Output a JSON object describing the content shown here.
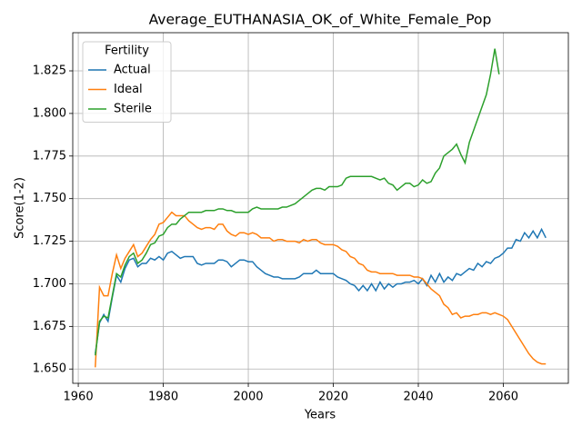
{
  "chart_data": {
    "type": "line",
    "title": "Average_EUTHANASIA_OK_of_White_Female_Pop",
    "x_label": "Years",
    "y_label": "Score(1-2)",
    "legend_title": "Fertility",
    "legend_position": "upper left",
    "grid": true,
    "x": [
      1964,
      1965,
      1966,
      1967,
      1968,
      1969,
      1970,
      1971,
      1972,
      1973,
      1974,
      1975,
      1976,
      1977,
      1978,
      1979,
      1980,
      1981,
      1982,
      1983,
      1984,
      1985,
      1986,
      1987,
      1988,
      1989,
      1990,
      1991,
      1992,
      1993,
      1994,
      1995,
      1996,
      1997,
      1998,
      1999,
      2000,
      2001,
      2002,
      2003,
      2004,
      2005,
      2006,
      2007,
      2008,
      2009,
      2010,
      2011,
      2012,
      2013,
      2014,
      2015,
      2016,
      2017,
      2018,
      2019,
      2020,
      2021,
      2022,
      2023,
      2024,
      2025,
      2026,
      2027,
      2028,
      2029,
      2030,
      2031,
      2032,
      2033,
      2034,
      2035,
      2036,
      2037,
      2038,
      2039,
      2040,
      2041,
      2042,
      2043,
      2044,
      2045,
      2046,
      2047,
      2048,
      2049,
      2050,
      2051,
      2052,
      2053,
      2054,
      2055,
      2056,
      2057,
      2058,
      2059,
      2060,
      2061,
      2062,
      2063,
      2064,
      2065,
      2066,
      2067,
      2068,
      2069,
      2070
    ],
    "series": [
      {
        "name": "Actual",
        "color": "#1f77b4",
        "values": [
          1.659,
          1.677,
          1.682,
          1.678,
          1.692,
          1.705,
          1.701,
          1.709,
          1.714,
          1.715,
          1.71,
          1.712,
          1.712,
          1.715,
          1.714,
          1.716,
          1.714,
          1.718,
          1.719,
          1.717,
          1.715,
          1.716,
          1.716,
          1.716,
          1.712,
          1.711,
          1.712,
          1.712,
          1.712,
          1.714,
          1.714,
          1.713,
          1.71,
          1.712,
          1.714,
          1.714,
          1.713,
          1.713,
          1.71,
          1.708,
          1.706,
          1.705,
          1.704,
          1.704,
          1.703,
          1.703,
          1.703,
          1.703,
          1.704,
          1.706,
          1.706,
          1.706,
          1.708,
          1.706,
          1.706,
          1.706,
          1.706,
          1.704,
          1.703,
          1.702,
          1.7,
          1.699,
          1.696,
          1.699,
          1.696,
          1.7,
          1.696,
          1.701,
          1.697,
          1.7,
          1.698,
          1.7,
          1.7,
          1.701,
          1.701,
          1.702,
          1.7,
          1.703,
          1.699,
          1.705,
          1.701,
          1.706,
          1.701,
          1.704,
          1.702,
          1.706,
          1.705,
          1.707,
          1.709,
          1.708,
          1.712,
          1.71,
          1.713,
          1.712,
          1.715,
          1.716,
          1.718,
          1.721,
          1.721,
          1.726,
          1.725,
          1.73,
          1.727,
          1.731,
          1.727,
          1.732,
          1.727
        ]
      },
      {
        "name": "Ideal",
        "color": "#ff7f0e",
        "values": [
          1.651,
          1.698,
          1.693,
          1.693,
          1.706,
          1.717,
          1.709,
          1.715,
          1.719,
          1.723,
          1.716,
          1.718,
          1.722,
          1.726,
          1.729,
          1.735,
          1.736,
          1.739,
          1.742,
          1.74,
          1.74,
          1.74,
          1.737,
          1.735,
          1.733,
          1.732,
          1.733,
          1.733,
          1.732,
          1.735,
          1.735,
          1.731,
          1.729,
          1.728,
          1.73,
          1.73,
          1.729,
          1.73,
          1.729,
          1.727,
          1.727,
          1.727,
          1.725,
          1.726,
          1.726,
          1.725,
          1.725,
          1.725,
          1.724,
          1.726,
          1.725,
          1.726,
          1.726,
          1.724,
          1.723,
          1.723,
          1.723,
          1.722,
          1.72,
          1.719,
          1.716,
          1.715,
          1.712,
          1.711,
          1.708,
          1.707,
          1.707,
          1.706,
          1.706,
          1.706,
          1.706,
          1.705,
          1.705,
          1.705,
          1.705,
          1.704,
          1.704,
          1.703,
          1.7,
          1.697,
          1.695,
          1.693,
          1.688,
          1.686,
          1.682,
          1.683,
          1.68,
          1.681,
          1.681,
          1.682,
          1.682,
          1.683,
          1.683,
          1.682,
          1.683,
          1.682,
          1.681,
          1.679,
          1.675,
          1.671,
          1.667,
          1.663,
          1.659,
          1.656,
          1.654,
          1.653,
          1.653
        ]
      },
      {
        "name": "Sterile",
        "color": "#2ca02c",
        "values": [
          1.658,
          1.678,
          1.681,
          1.68,
          1.693,
          1.706,
          1.704,
          1.711,
          1.716,
          1.718,
          1.712,
          1.714,
          1.718,
          1.723,
          1.724,
          1.728,
          1.729,
          1.733,
          1.735,
          1.735,
          1.738,
          1.74,
          1.742,
          1.742,
          1.742,
          1.742,
          1.743,
          1.743,
          1.743,
          1.744,
          1.744,
          1.743,
          1.743,
          1.742,
          1.742,
          1.742,
          1.742,
          1.744,
          1.745,
          1.744,
          1.744,
          1.744,
          1.744,
          1.744,
          1.745,
          1.745,
          1.746,
          1.747,
          1.749,
          1.751,
          1.753,
          1.755,
          1.756,
          1.756,
          1.755,
          1.757,
          1.757,
          1.757,
          1.758,
          1.762,
          1.763,
          1.763,
          1.763,
          1.763,
          1.763,
          1.763,
          1.762,
          1.761,
          1.762,
          1.759,
          1.758,
          1.755,
          1.757,
          1.759,
          1.759,
          1.757,
          1.758,
          1.761,
          1.759,
          1.76,
          1.765,
          1.768,
          1.775,
          1.777,
          1.779,
          1.782,
          1.776,
          1.771,
          1.783,
          1.79,
          1.797,
          1.804,
          1.811,
          1.823,
          1.838,
          1.823,
          null,
          null,
          null,
          null,
          null,
          null,
          null,
          null,
          null,
          null,
          null
        ]
      }
    ],
    "xlim": [
      1958.7,
      2075.3
    ],
    "xticks": [
      1960,
      1980,
      2000,
      2020,
      2040,
      2060
    ],
    "ylim": [
      1.6416,
      1.8474
    ],
    "yticks": [
      {
        "value": 1.65,
        "label": "1.650"
      },
      {
        "value": 1.675,
        "label": "1.675"
      },
      {
        "value": 1.7,
        "label": "1.700"
      },
      {
        "value": 1.725,
        "label": "1.725"
      },
      {
        "value": 1.75,
        "label": "1.750"
      },
      {
        "value": 1.775,
        "label": "1.775"
      },
      {
        "value": 1.8,
        "label": "1.800"
      },
      {
        "value": 1.825,
        "label": "1.825"
      }
    ]
  }
}
